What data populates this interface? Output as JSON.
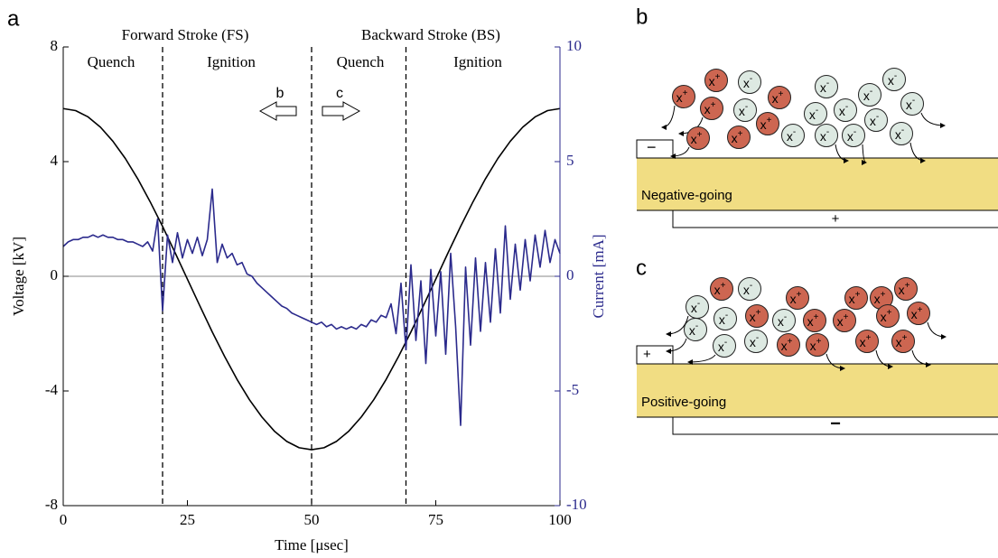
{
  "chart_data": {
    "type": "line",
    "panel_label": "a",
    "xlabel": "Time [μsec]",
    "ylabel": "Voltage [kV]",
    "y2label": "Current [mA]",
    "xlim": [
      0,
      100
    ],
    "xticks": [
      0,
      25,
      50,
      75,
      100
    ],
    "ylim": [
      -8,
      8
    ],
    "yticks": [
      -8,
      -4,
      0,
      4,
      8
    ],
    "y2lim": [
      -10,
      10
    ],
    "y2ticks": [
      -10,
      -5,
      0,
      5,
      10
    ],
    "zero_line": true,
    "vlines": [
      20,
      50,
      69
    ],
    "stroke_labels": [
      "Forward Stroke (FS)",
      "Backward Stroke (BS)"
    ],
    "phase_labels": [
      "Quench",
      "Ignition",
      "Quench",
      "Ignition"
    ],
    "direction_labels": [
      "b",
      "c"
    ],
    "series": [
      {
        "name": "Voltage",
        "color": "#000000",
        "axis": "y",
        "x": [
          0,
          2.5,
          5,
          7.5,
          10,
          12.5,
          15,
          17.5,
          20,
          22.5,
          25,
          27.5,
          30,
          32.5,
          35,
          37.5,
          40,
          42.5,
          45,
          47.5,
          50,
          52.5,
          55,
          57.5,
          60,
          62.5,
          65,
          67.5,
          70,
          72.5,
          75,
          77.5,
          80,
          82.5,
          85,
          87.5,
          90,
          92.5,
          95,
          97.5,
          100
        ],
        "values": [
          5.85,
          5.78,
          5.56,
          5.2,
          4.71,
          4.11,
          3.4,
          2.6,
          1.74,
          0.83,
          -0.1,
          -1.03,
          -1.94,
          -2.8,
          -3.6,
          -4.31,
          -4.91,
          -5.4,
          -5.76,
          -5.98,
          -6.05,
          -5.98,
          -5.76,
          -5.4,
          -4.91,
          -4.31,
          -3.6,
          -2.8,
          -1.94,
          -1.03,
          -0.1,
          0.83,
          1.74,
          2.6,
          3.4,
          4.11,
          4.71,
          5.2,
          5.56,
          5.78,
          5.85
        ]
      },
      {
        "name": "Current",
        "color": "#2b2a8c",
        "axis": "y2",
        "x": [
          0,
          1,
          2,
          3,
          4,
          5,
          6,
          7,
          8,
          9,
          10,
          11,
          12,
          13,
          14,
          15,
          16,
          17,
          18,
          19,
          20,
          21,
          22,
          23,
          24,
          25,
          26,
          27,
          28,
          29,
          30,
          31,
          32,
          33,
          34,
          35,
          36,
          37,
          38,
          39,
          40,
          41,
          42,
          43,
          44,
          45,
          46,
          47,
          48,
          49,
          50,
          51,
          52,
          53,
          54,
          55,
          56,
          57,
          58,
          59,
          60,
          61,
          62,
          63,
          64,
          65,
          66,
          67,
          68,
          69,
          70,
          71,
          72,
          73,
          74,
          75,
          76,
          77,
          78,
          79,
          80,
          81,
          82,
          83,
          84,
          85,
          86,
          87,
          88,
          89,
          90,
          91,
          92,
          93,
          94,
          95,
          96,
          97,
          98,
          99,
          100
        ],
        "values": [
          1.3,
          1.5,
          1.6,
          1.6,
          1.7,
          1.7,
          1.8,
          1.7,
          1.8,
          1.7,
          1.7,
          1.6,
          1.6,
          1.5,
          1.5,
          1.4,
          1.3,
          1.5,
          1.1,
          2.5,
          -1.5,
          1.8,
          0.6,
          1.9,
          0.8,
          1.6,
          1.0,
          1.7,
          0.9,
          1.6,
          3.8,
          0.6,
          1.4,
          0.8,
          1.0,
          0.5,
          0.6,
          0.1,
          0.0,
          -0.3,
          -0.5,
          -0.7,
          -0.9,
          -1.1,
          -1.3,
          -1.4,
          -1.6,
          -1.7,
          -1.8,
          -1.9,
          -2.0,
          -2.1,
          -2.0,
          -2.2,
          -2.1,
          -2.3,
          -2.2,
          -2.3,
          -2.2,
          -2.3,
          -2.1,
          -2.2,
          -1.9,
          -2.0,
          -1.7,
          -1.8,
          -1.2,
          -2.5,
          -0.3,
          -3.2,
          0.5,
          -2.8,
          -0.2,
          -3.8,
          0.3,
          -2.6,
          0.2,
          -3.4,
          1.0,
          -2.2,
          -6.5,
          0.4,
          -3.0,
          0.8,
          -2.4,
          0.6,
          -2.0,
          1.2,
          -1.6,
          2.2,
          -1.0,
          1.4,
          -0.6,
          1.6,
          -0.2,
          1.8,
          0.4,
          2.0,
          0.6,
          1.6,
          1.0
        ]
      }
    ]
  },
  "diagrams": {
    "ion_symbol": "x",
    "cation_charge": "+",
    "anion_charge": "-",
    "b": {
      "label": "b",
      "plate_label": "Negative-going",
      "left_electrode": "−",
      "bottom_electrode": "+"
    },
    "c": {
      "label": "c",
      "plate_label": "Positive-going",
      "left_electrode": "+",
      "bottom_electrode": "−"
    }
  }
}
